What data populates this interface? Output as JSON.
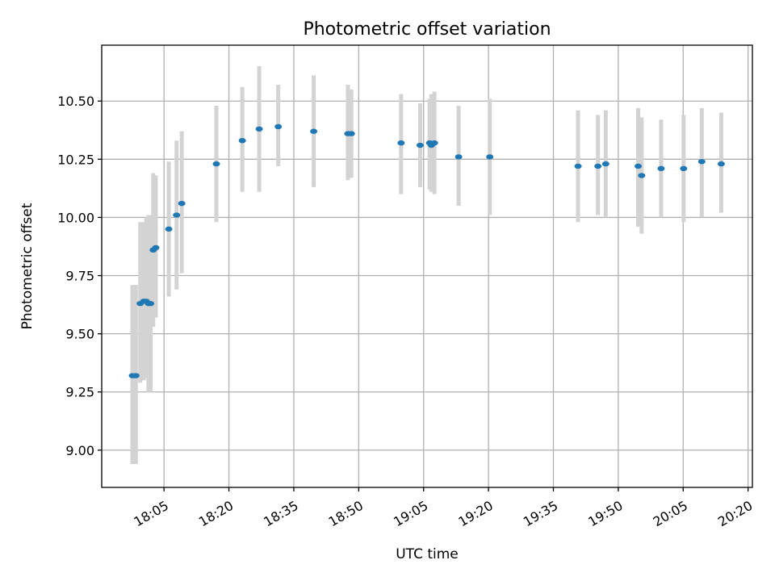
{
  "chart_data": {
    "type": "scatter",
    "title": "Photometric offset variation",
    "xlabel": "UTC time",
    "ylabel": "Photometric offset",
    "grid": true,
    "x_axis": "time",
    "xlim": [
      "17:50:36",
      "20:21:00"
    ],
    "ylim": [
      8.84,
      10.74
    ],
    "x_ticks": [
      "18:05",
      "18:20",
      "18:35",
      "18:50",
      "19:05",
      "19:20",
      "19:35",
      "19:50",
      "20:05",
      "20:20"
    ],
    "y_ticks": [
      "9.00",
      "9.25",
      "9.50",
      "9.75",
      "10.00",
      "10.25",
      "10.50"
    ],
    "series": [
      {
        "color": "#1f77b4",
        "error_color": "#d3d3d3",
        "points": [
          {
            "time": "17:57:42",
            "y": 9.32,
            "err_low": 8.94,
            "err_high": 9.71
          },
          {
            "time": "17:58:30",
            "y": 9.32,
            "err_low": 8.94,
            "err_high": 9.71
          },
          {
            "time": "17:59:30",
            "y": 9.63,
            "err_low": 9.29,
            "err_high": 9.98
          },
          {
            "time": "18:00:18",
            "y": 9.64,
            "err_low": 9.3,
            "err_high": 9.98
          },
          {
            "time": "18:00:54",
            "y": 9.64,
            "err_low": 9.31,
            "err_high": 10.0
          },
          {
            "time": "18:01:24",
            "y": 9.63,
            "err_low": 9.25,
            "err_high": 10.01
          },
          {
            "time": "18:01:54",
            "y": 9.63,
            "err_low": 9.25,
            "err_high": 10.01
          },
          {
            "time": "18:02:30",
            "y": 9.86,
            "err_low": 9.53,
            "err_high": 10.19
          },
          {
            "time": "18:03:06",
            "y": 9.87,
            "err_low": 9.57,
            "err_high": 10.18
          },
          {
            "time": "18:06:06",
            "y": 9.95,
            "err_low": 9.66,
            "err_high": 10.24
          },
          {
            "time": "18:07:54",
            "y": 10.01,
            "err_low": 9.69,
            "err_high": 10.33
          },
          {
            "time": "18:09:06",
            "y": 10.06,
            "err_low": 9.76,
            "err_high": 10.37
          },
          {
            "time": "18:17:06",
            "y": 10.23,
            "err_low": 9.98,
            "err_high": 10.48
          },
          {
            "time": "18:23:06",
            "y": 10.33,
            "err_low": 10.11,
            "err_high": 10.56
          },
          {
            "time": "18:27:00",
            "y": 10.38,
            "err_low": 10.11,
            "err_high": 10.65
          },
          {
            "time": "18:31:24",
            "y": 10.39,
            "err_low": 10.22,
            "err_high": 10.57
          },
          {
            "time": "18:39:36",
            "y": 10.37,
            "err_low": 10.13,
            "err_high": 10.61
          },
          {
            "time": "18:47:30",
            "y": 10.36,
            "err_low": 10.16,
            "err_high": 10.57
          },
          {
            "time": "18:48:18",
            "y": 10.36,
            "err_low": 10.17,
            "err_high": 10.55
          },
          {
            "time": "18:59:48",
            "y": 10.32,
            "err_low": 10.1,
            "err_high": 10.53
          },
          {
            "time": "19:04:12",
            "y": 10.31,
            "err_low": 10.13,
            "err_high": 10.49
          },
          {
            "time": "19:06:24",
            "y": 10.32,
            "err_low": 10.12,
            "err_high": 10.51
          },
          {
            "time": "19:06:48",
            "y": 10.31,
            "err_low": 10.11,
            "err_high": 10.53
          },
          {
            "time": "19:07:30",
            "y": 10.32,
            "err_low": 10.1,
            "err_high": 10.54
          },
          {
            "time": "19:13:06",
            "y": 10.26,
            "err_low": 10.05,
            "err_high": 10.48
          },
          {
            "time": "19:20:18",
            "y": 10.26,
            "err_low": 10.01,
            "err_high": 10.51
          },
          {
            "time": "19:40:42",
            "y": 10.22,
            "err_low": 9.98,
            "err_high": 10.46
          },
          {
            "time": "19:45:18",
            "y": 10.22,
            "err_low": 10.01,
            "err_high": 10.44
          },
          {
            "time": "19:47:06",
            "y": 10.23,
            "err_low": 10.0,
            "err_high": 10.46
          },
          {
            "time": "19:54:36",
            "y": 10.22,
            "err_low": 9.96,
            "err_high": 10.47
          },
          {
            "time": "19:55:24",
            "y": 10.18,
            "err_low": 9.93,
            "err_high": 10.43
          },
          {
            "time": "19:59:54",
            "y": 10.21,
            "err_low": 10.0,
            "err_high": 10.42
          },
          {
            "time": "20:05:06",
            "y": 10.21,
            "err_low": 9.98,
            "err_high": 10.44
          },
          {
            "time": "20:09:18",
            "y": 10.24,
            "err_low": 10.0,
            "err_high": 10.47
          },
          {
            "time": "20:13:48",
            "y": 10.23,
            "err_low": 10.02,
            "err_high": 10.45
          }
        ]
      }
    ]
  }
}
